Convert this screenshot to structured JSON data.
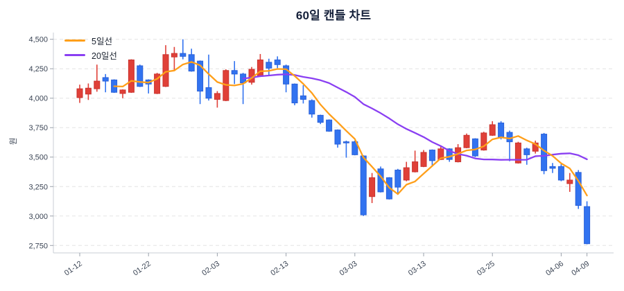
{
  "chart": {
    "title": "60일 캔들 차트",
    "y_axis_label": "원",
    "legend": {
      "ma5_label": "5일선",
      "ma20_label": "20일선"
    }
  },
  "colors": {
    "up": "#e04038",
    "up_border": "#c93430",
    "down": "#3273f0",
    "down_border": "#2a60d8",
    "ma5": "#ff9f1a",
    "ma20": "#8a3ff2",
    "grid": "#e4e4e4",
    "spine": "#c9ced6",
    "tick": "#9aa1ab",
    "axis_text": "#3a4454",
    "title_text": "#15203a"
  },
  "chart_data": {
    "type": "candlestick",
    "title": "60일 캔들 차트",
    "ylabel": "원",
    "legend_entries": [
      "5일선",
      "20일선"
    ],
    "legend_position": "upper-left",
    "grid": "horizontal-dashed",
    "ylim": [
      2687,
      4557
    ],
    "y_ticks": [
      2750,
      3000,
      3250,
      3500,
      3750,
      4000,
      4250,
      4500
    ],
    "x_tick_indices": [
      0,
      8,
      16,
      24,
      32,
      40,
      48,
      56,
      59
    ],
    "x_tick_labels": [
      "01-12",
      "01-22",
      "02-03",
      "02-13",
      "03-03",
      "03-13",
      "03-25",
      "04-06",
      "04-09"
    ],
    "overlays": [
      {
        "name": "5일선",
        "type": "sma",
        "window": 5
      },
      {
        "name": "20일선",
        "type": "sma",
        "window": 20
      }
    ],
    "candle_format": [
      "open",
      "high",
      "low",
      "close"
    ],
    "up_rule": "close greater than open drawn red, close less than open drawn blue",
    "candles": [
      [
        4005,
        4115,
        3960,
        4080
      ],
      [
        4035,
        4125,
        3985,
        4085
      ],
      [
        4080,
        4285,
        4055,
        4145
      ],
      [
        4175,
        4205,
        4050,
        4145
      ],
      [
        4155,
        4160,
        4045,
        4050
      ],
      [
        4040,
        4075,
        4000,
        4070
      ],
      [
        4050,
        4330,
        4045,
        4325
      ],
      [
        4275,
        4285,
        4095,
        4100
      ],
      [
        4155,
        4160,
        4040,
        4120
      ],
      [
        4040,
        4215,
        4035,
        4205
      ],
      [
        4100,
        4450,
        4095,
        4370
      ],
      [
        4350,
        4435,
        4230,
        4380
      ],
      [
        4380,
        4500,
        4330,
        4355
      ],
      [
        4370,
        4420,
        4225,
        4230
      ],
      [
        4315,
        4320,
        3950,
        4060
      ],
      [
        4090,
        4370,
        3980,
        4000
      ],
      [
        3990,
        4060,
        3920,
        4040
      ],
      [
        3980,
        4245,
        3975,
        4235
      ],
      [
        4235,
        4315,
        4120,
        4205
      ],
      [
        4205,
        4215,
        3950,
        4130
      ],
      [
        4135,
        4265,
        4115,
        4245
      ],
      [
        4185,
        4375,
        4180,
        4325
      ],
      [
        4305,
        4335,
        4195,
        4255
      ],
      [
        4325,
        4355,
        4255,
        4285
      ],
      [
        4275,
        4285,
        4050,
        4120
      ],
      [
        4120,
        4125,
        3940,
        3960
      ],
      [
        4020,
        4110,
        3955,
        3990
      ],
      [
        3980,
        3990,
        3835,
        3865
      ],
      [
        3855,
        3860,
        3780,
        3795
      ],
      [
        3815,
        3820,
        3715,
        3720
      ],
      [
        3730,
        3735,
        3580,
        3610
      ],
      [
        3630,
        3640,
        3495,
        3625
      ],
      [
        3630,
        3640,
        3515,
        3520
      ],
      [
        3510,
        3515,
        3000,
        3010
      ],
      [
        3165,
        3365,
        3110,
        3325
      ],
      [
        3400,
        3420,
        3200,
        3205
      ],
      [
        3325,
        3330,
        3140,
        3145
      ],
      [
        3390,
        3400,
        3180,
        3245
      ],
      [
        3305,
        3460,
        3295,
        3410
      ],
      [
        3375,
        3555,
        3370,
        3460
      ],
      [
        3420,
        3560,
        3415,
        3540
      ],
      [
        3560,
        3565,
        3430,
        3470
      ],
      [
        3480,
        3590,
        3475,
        3570
      ],
      [
        3570,
        3575,
        3460,
        3480
      ],
      [
        3460,
        3610,
        3455,
        3580
      ],
      [
        3580,
        3700,
        3575,
        3685
      ],
      [
        3655,
        3660,
        3500,
        3510
      ],
      [
        3560,
        3715,
        3555,
        3705
      ],
      [
        3685,
        3805,
        3680,
        3775
      ],
      [
        3790,
        3805,
        3650,
        3665
      ],
      [
        3710,
        3725,
        3465,
        3630
      ],
      [
        3450,
        3630,
        3445,
        3620
      ],
      [
        3570,
        3580,
        3435,
        3520
      ],
      [
        3550,
        3640,
        3530,
        3620
      ],
      [
        3695,
        3705,
        3355,
        3385
      ],
      [
        3420,
        3450,
        3365,
        3405
      ],
      [
        3420,
        3440,
        3295,
        3305
      ],
      [
        3275,
        3365,
        3205,
        3305
      ],
      [
        3370,
        3390,
        3060,
        3090
      ],
      [
        3080,
        3125,
        2760,
        2765
      ]
    ]
  }
}
